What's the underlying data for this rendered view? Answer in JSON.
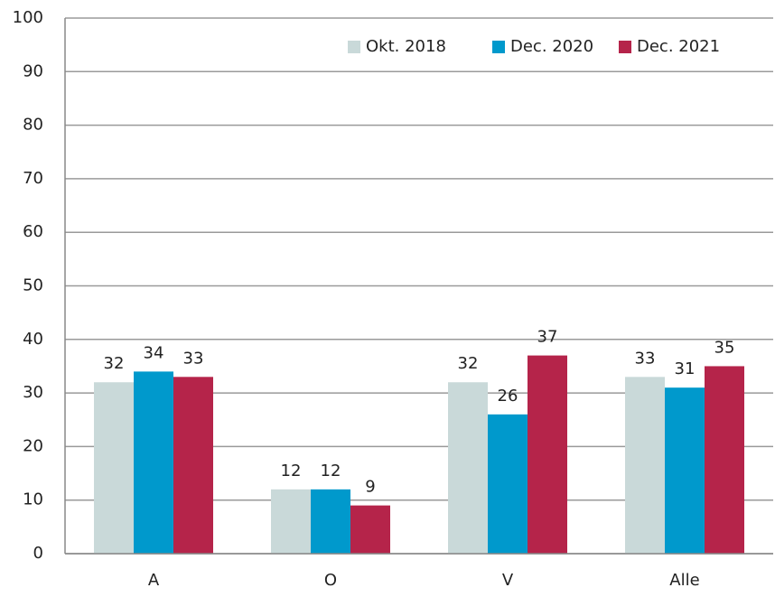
{
  "chart_data": {
    "type": "bar",
    "categories": [
      "A",
      "O",
      "V",
      "Alle"
    ],
    "series": [
      {
        "name": "Okt. 2018",
        "color": "#c9d9d9",
        "values": [
          32,
          12,
          32,
          33
        ]
      },
      {
        "name": "Dec. 2020",
        "color": "#0099cc",
        "values": [
          34,
          12,
          26,
          31
        ]
      },
      {
        "name": "Dec. 2021",
        "color": "#b5244a",
        "values": [
          33,
          9,
          37,
          35
        ]
      }
    ],
    "ylim": [
      0,
      100
    ],
    "yticks": [
      0,
      10,
      20,
      30,
      40,
      50,
      60,
      70,
      80,
      90,
      100
    ],
    "grid": true,
    "legend": "top-right"
  }
}
